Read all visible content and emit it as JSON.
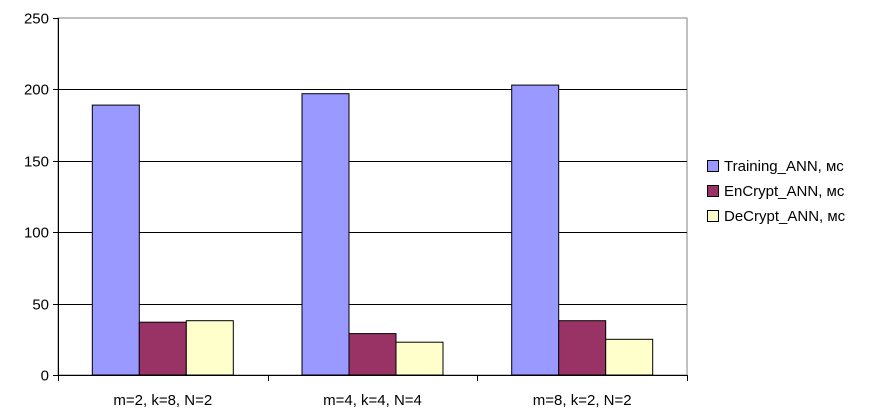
{
  "chart_data": {
    "type": "bar",
    "title": "",
    "xlabel": "",
    "ylabel": "",
    "categories": [
      "m=2, k=8, N=2",
      "m=4, k=4, N=4",
      "m=8, k=2, N=2"
    ],
    "series": [
      {
        "name": "Training_ANN, мс",
        "values": [
          189,
          197,
          203
        ],
        "color": "#9999ff"
      },
      {
        "name": "EnCrypt_ANN, мс",
        "values": [
          37,
          29,
          38
        ],
        "color": "#993366"
      },
      {
        "name": "DeCrypt_ANN, мс",
        "values": [
          38,
          23,
          25
        ],
        "color": "#ffffcc"
      }
    ],
    "ylim": [
      0,
      250
    ],
    "yticks": [
      0,
      50,
      100,
      150,
      200,
      250
    ],
    "grid": true,
    "legend": "right"
  }
}
